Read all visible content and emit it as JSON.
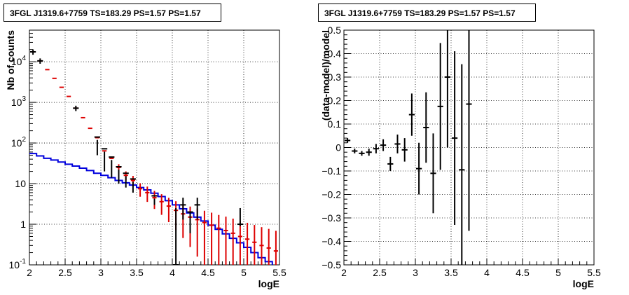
{
  "colors": {
    "data": "#000000",
    "model": "#dd0000",
    "source": "#0000dd",
    "grid": "#000000"
  },
  "chart_data": [
    {
      "type": "line",
      "title": "3FGL J1319.6+7759 TS=183.29 PS=1.57 PS=1.57",
      "xlabel": "logE",
      "ylabel": "Nb of counts",
      "xlim": [
        2,
        5.5
      ],
      "ylim": [
        0.1,
        60000
      ],
      "yscale": "log",
      "grid": true,
      "x_tick_labels": [
        "2",
        "2.5",
        "3",
        "3.5",
        "4",
        "4.5",
        "5",
        "5.5"
      ],
      "y_tick_labels": [
        {
          "value": 0.1,
          "base": "10",
          "exp": "-1"
        },
        {
          "value": 1,
          "base": "1",
          "exp": ""
        },
        {
          "value": 10,
          "base": "10",
          "exp": ""
        },
        {
          "value": 100,
          "base": "10",
          "exp": "2"
        },
        {
          "value": 1000,
          "base": "10",
          "exp": "3"
        },
        {
          "value": 10000,
          "base": "10",
          "exp": "4"
        }
      ],
      "bin_edges": [
        2.0,
        2.1,
        2.2,
        2.3,
        2.4,
        2.5,
        2.6,
        2.7,
        2.8,
        2.9,
        3.0,
        3.1,
        3.2,
        3.3,
        3.4,
        3.5,
        3.6,
        3.7,
        3.8,
        3.9,
        4.0,
        4.1,
        4.2,
        4.3,
        4.4,
        4.5,
        4.6,
        4.7,
        4.8,
        4.9,
        5.0,
        5.1,
        5.2,
        5.3,
        5.4,
        5.5
      ],
      "series": [
        {
          "kind": "data",
          "x": [
            2.05,
            2.15,
            2.25,
            2.35,
            2.45,
            2.55,
            2.65,
            2.75,
            2.85,
            2.95,
            3.05,
            3.15,
            3.25,
            3.35,
            3.45,
            3.55,
            3.65,
            3.75,
            3.85,
            3.95,
            4.05,
            4.15,
            4.25,
            4.35,
            4.45,
            4.55,
            4.65,
            4.75,
            4.85,
            4.95,
            5.05,
            5.15,
            5.25,
            5.35,
            5.45
          ],
          "y": [
            17500,
            10500,
            null,
            null,
            null,
            null,
            720,
            null,
            null,
            140,
            72,
            45,
            26,
            18,
            13,
            null,
            null,
            5,
            null,
            null,
            0.1,
            3,
            2,
            3,
            null,
            null,
            null,
            null,
            null,
            1,
            null,
            null,
            null,
            null,
            null
          ],
          "yerr_low": [
            null,
            null,
            null,
            null,
            null,
            null,
            null,
            null,
            null,
            null,
            null,
            null,
            null,
            null,
            null,
            null,
            null,
            null,
            null,
            null,
            null,
            1.3,
            0.6,
            1.3,
            null,
            null,
            null,
            null,
            null,
            0.9,
            null,
            null,
            null,
            null,
            null
          ],
          "yerr_high": [
            null,
            null,
            null,
            null,
            null,
            null,
            null,
            null,
            null,
            50,
            20,
            14,
            10,
            8,
            6,
            null,
            null,
            3,
            null,
            null,
            null,
            4.5,
            2,
            4.5,
            null,
            null,
            null,
            null,
            null,
            2.5,
            null,
            null,
            null,
            null,
            null
          ]
        },
        {
          "kind": "model",
          "x": [
            2.05,
            2.15,
            2.25,
            2.35,
            2.45,
            2.55,
            2.65,
            2.75,
            2.85,
            2.95,
            3.05,
            3.15,
            3.25,
            3.35,
            3.45,
            3.55,
            3.65,
            3.75,
            3.85,
            3.95,
            4.05,
            4.15,
            4.25,
            4.35,
            4.45,
            4.55,
            4.65,
            4.75,
            4.85,
            4.95,
            5.05,
            5.15,
            5.25,
            5.35,
            5.45
          ],
          "y": [
            17500,
            10500,
            6400,
            3900,
            2350,
            1400,
            720,
            420,
            230,
            135,
            64,
            42,
            25,
            16,
            12,
            7.5,
            6,
            4.5,
            3.6,
            2.8,
            2.2,
            1.8,
            1.5,
            1.3,
            1.1,
            0.95,
            0.8,
            0.7,
            0.6,
            0.5,
            0.43,
            0.36,
            0.3,
            0.26,
            0.22
          ]
        },
        {
          "kind": "source",
          "y": [
            55,
            48,
            42,
            38,
            34,
            30,
            27,
            24,
            21,
            18,
            16,
            14,
            12,
            10.5,
            9.2,
            8,
            7,
            5.8,
            4.8,
            3.8,
            3.0,
            2.4,
            1.9,
            1.5,
            1.2,
            0.95,
            0.75,
            0.58,
            0.45,
            0.35,
            0.27,
            0.2,
            0.15,
            0.12,
            0.09
          ]
        }
      ]
    },
    {
      "type": "scatter",
      "title": "3FGL J1319.6+7759 TS=183.29 PS=1.57 PS=1.57",
      "xlabel": "logE",
      "ylabel": "(data-model)/model",
      "xlim": [
        2,
        5.5
      ],
      "ylim": [
        -0.5,
        0.5
      ],
      "grid": true,
      "x_tick_labels": [
        "2",
        "2.5",
        "3",
        "3.5",
        "4",
        "4.5",
        "5",
        "5.5"
      ],
      "y_tick_labels": [
        "−0.5",
        "−0.4",
        "−0.3",
        "−0.2",
        "−0.1",
        "0",
        "0.1",
        "0.2",
        "0.3",
        "0.4",
        "0.5"
      ],
      "y_tick_values": [
        -0.5,
        -0.4,
        -0.3,
        -0.2,
        -0.1,
        0,
        0.1,
        0.2,
        0.3,
        0.4,
        0.5
      ],
      "series": [
        {
          "kind": "residual",
          "x": [
            2.05,
            2.15,
            2.25,
            2.35,
            2.45,
            2.55,
            2.65,
            2.75,
            2.85,
            2.95,
            3.05,
            3.15,
            3.25,
            3.35,
            3.45,
            3.55,
            3.65,
            3.75
          ],
          "y": [
            0.03,
            -0.015,
            -0.025,
            -0.02,
            -0.005,
            0.01,
            -0.07,
            0.015,
            -0.01,
            0.14,
            -0.09,
            0.085,
            -0.11,
            0.175,
            0.3,
            0.04,
            -0.095,
            0.185
          ],
          "yerr": [
            0.01,
            0.01,
            0.01,
            0.015,
            0.02,
            0.025,
            0.03,
            0.04,
            0.05,
            0.09,
            0.11,
            0.15,
            0.17,
            0.27,
            0.3,
            0.37,
            0.45,
            0.54
          ]
        }
      ]
    }
  ]
}
